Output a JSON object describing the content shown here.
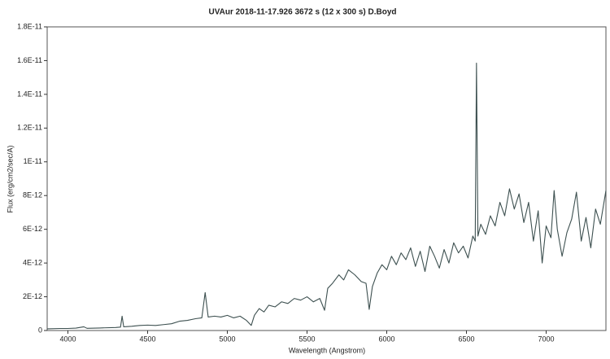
{
  "chart_data": {
    "type": "line",
    "title": "UVAur   2018-11-17.926   3672 s (12 x 300 s)   D.Boyd",
    "x_label": "Wavelength (Angstrom)",
    "y_label": "Flux (erg/cm2/sec/A)",
    "color": "#3d5050",
    "xlim": [
      3870,
      7375
    ],
    "ylim": [
      0,
      1.8e-11
    ],
    "xticks": [
      4000,
      4500,
      5000,
      5500,
      6000,
      6500,
      7000
    ],
    "yticks": [
      0,
      {
        "value": 2e-12,
        "label": "2E-12"
      },
      {
        "value": 4e-12,
        "label": "4E-12"
      },
      {
        "value": 6e-12,
        "label": "6E-12"
      },
      {
        "value": 8e-12,
        "label": "8E-12"
      },
      {
        "value": 1e-11,
        "label": "1E-11"
      },
      {
        "value": 1.2e-11,
        "label": "1.2E-11"
      },
      {
        "value": 1.4e-11,
        "label": "1.4E-11"
      },
      {
        "value": 1.6e-11,
        "label": "1.6E-11"
      },
      {
        "value": 1.8e-11,
        "label": "1.8E-11"
      }
    ],
    "x": [
      3870,
      3950,
      4000,
      4050,
      4100,
      4120,
      4200,
      4300,
      4330,
      4340,
      4350,
      4400,
      4450,
      4500,
      4550,
      4600,
      4650,
      4700,
      4750,
      4800,
      4840,
      4861,
      4880,
      4920,
      4960,
      5000,
      5040,
      5080,
      5120,
      5150,
      5170,
      5200,
      5230,
      5260,
      5300,
      5340,
      5380,
      5420,
      5460,
      5500,
      5540,
      5580,
      5610,
      5630,
      5660,
      5700,
      5730,
      5760,
      5800,
      5840,
      5870,
      5890,
      5910,
      5940,
      5970,
      6000,
      6030,
      6060,
      6090,
      6120,
      6150,
      6180,
      6210,
      6240,
      6270,
      6300,
      6330,
      6360,
      6390,
      6420,
      6450,
      6480,
      6510,
      6540,
      6555,
      6563,
      6572,
      6590,
      6620,
      6650,
      6680,
      6710,
      6740,
      6770,
      6800,
      6830,
      6860,
      6890,
      6920,
      6950,
      6975,
      7000,
      7030,
      7050,
      7070,
      7100,
      7130,
      7160,
      7190,
      7220,
      7250,
      7280,
      7310,
      7340,
      7375
    ],
    "values": [
      1e-13,
      1.2e-13,
      1.2e-13,
      1.4e-13,
      2.2e-13,
      1.3e-13,
      1.5e-13,
      1.8e-13,
      2e-13,
      8.5e-13,
      2.2e-13,
      2.5e-13,
      3e-13,
      3.2e-13,
      3e-13,
      3.5e-13,
      4e-13,
      5.5e-13,
      6e-13,
      7e-13,
      7.5e-13,
      2.25e-12,
      8e-13,
      8.5e-13,
      8e-13,
      9e-13,
      7.5e-13,
      8.5e-13,
      6e-13,
      3e-13,
      9e-13,
      1.3e-12,
      1.1e-12,
      1.5e-12,
      1.4e-12,
      1.7e-12,
      1.6e-12,
      1.9e-12,
      1.8e-12,
      2e-12,
      1.7e-12,
      1.9e-12,
      1.2e-12,
      2.5e-12,
      2.8e-12,
      3.3e-12,
      3e-12,
      3.6e-12,
      3.3e-12,
      2.9e-12,
      2.8e-12,
      1.25e-12,
      2.6e-12,
      3.4e-12,
      3.9e-12,
      3.6e-12,
      4.4e-12,
      3.9e-12,
      4.6e-12,
      4.2e-12,
      4.9e-12,
      3.8e-12,
      4.7e-12,
      3.5e-12,
      5e-12,
      4.4e-12,
      3.7e-12,
      4.8e-12,
      4e-12,
      5.2e-12,
      4.6e-12,
      5e-12,
      4.3e-12,
      5.6e-12,
      5.3e-12,
      1.585e-11,
      5.6e-12,
      6.3e-12,
      5.7e-12,
      6.8e-12,
      6.2e-12,
      7.6e-12,
      6.8e-12,
      8.4e-12,
      7.2e-12,
      8.1e-12,
      6.4e-12,
      7.6e-12,
      5.3e-12,
      7.1e-12,
      4e-12,
      6.2e-12,
      5.5e-12,
      8.3e-12,
      6e-12,
      4.4e-12,
      5.8e-12,
      6.6e-12,
      8.2e-12,
      5.3e-12,
      6.7e-12,
      4.9e-12,
      7.2e-12,
      6.3e-12,
      8.3e-12
    ]
  }
}
